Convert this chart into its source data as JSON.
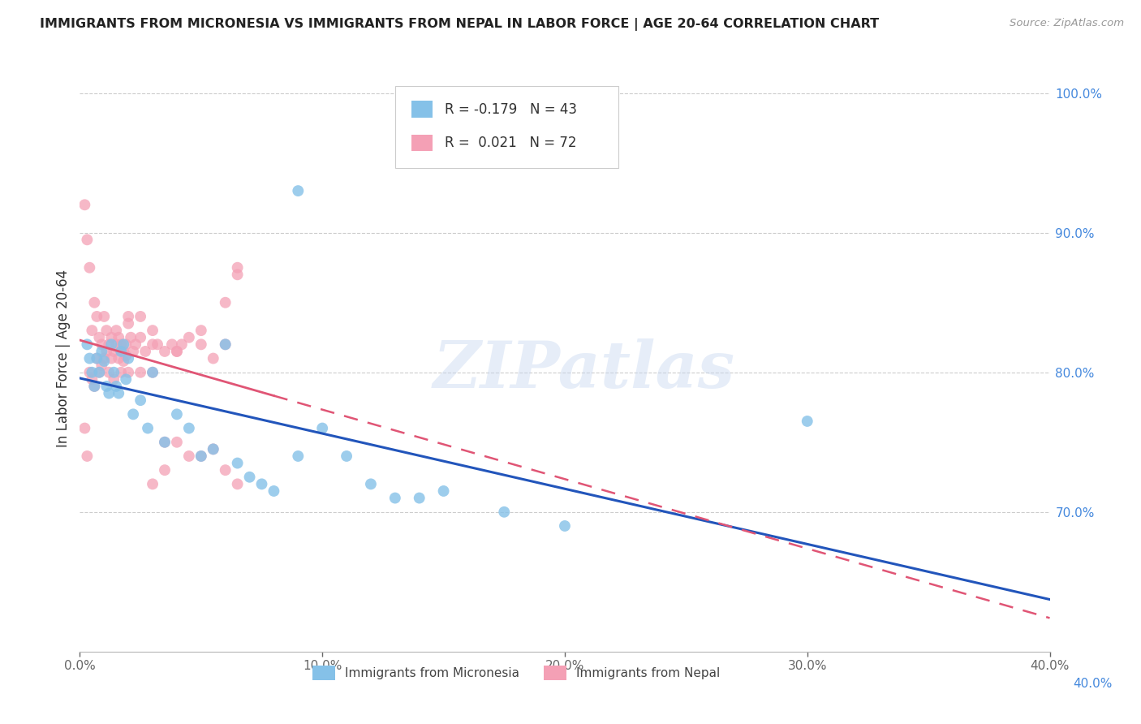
{
  "title": "IMMIGRANTS FROM MICRONESIA VS IMMIGRANTS FROM NEPAL IN LABOR FORCE | AGE 20-64 CORRELATION CHART",
  "source": "Source: ZipAtlas.com",
  "ylabel": "In Labor Force | Age 20-64",
  "xlim": [
    0.0,
    0.4
  ],
  "ylim": [
    0.6,
    1.02
  ],
  "right_yticks": [
    1.0,
    0.9,
    0.8,
    0.7
  ],
  "right_yticklabels": [
    "100.0%",
    "90.0%",
    "80.0%",
    "70.0%"
  ],
  "bottom_right_label": "40.0%",
  "xticks": [
    0.0,
    0.1,
    0.2,
    0.3,
    0.4
  ],
  "xticklabels": [
    "0.0%",
    "10.0%",
    "20.0%",
    "30.0%",
    "40.0%"
  ],
  "legend_blue_r": "-0.179",
  "legend_blue_n": "43",
  "legend_pink_r": "0.021",
  "legend_pink_n": "72",
  "blue_color": "#85C1E8",
  "pink_color": "#F4A0B5",
  "blue_line_color": "#2255BB",
  "pink_line_color": "#E05575",
  "watermark": "ZIPatlas",
  "watermark_color": "#C8D8F0",
  "blue_x": [
    0.003,
    0.004,
    0.005,
    0.006,
    0.007,
    0.008,
    0.009,
    0.01,
    0.011,
    0.012,
    0.013,
    0.014,
    0.015,
    0.016,
    0.017,
    0.018,
    0.019,
    0.02,
    0.022,
    0.025,
    0.028,
    0.03,
    0.035,
    0.04,
    0.045,
    0.05,
    0.055,
    0.065,
    0.07,
    0.075,
    0.08,
    0.09,
    0.1,
    0.11,
    0.12,
    0.13,
    0.14,
    0.15,
    0.175,
    0.2,
    0.09,
    0.3,
    0.06
  ],
  "blue_y": [
    0.82,
    0.81,
    0.8,
    0.79,
    0.81,
    0.8,
    0.815,
    0.808,
    0.79,
    0.785,
    0.82,
    0.8,
    0.79,
    0.785,
    0.815,
    0.82,
    0.795,
    0.81,
    0.77,
    0.78,
    0.76,
    0.8,
    0.75,
    0.77,
    0.76,
    0.74,
    0.745,
    0.735,
    0.725,
    0.72,
    0.715,
    0.74,
    0.76,
    0.74,
    0.72,
    0.71,
    0.71,
    0.715,
    0.7,
    0.69,
    0.93,
    0.765,
    0.82
  ],
  "pink_x": [
    0.002,
    0.003,
    0.004,
    0.005,
    0.006,
    0.007,
    0.008,
    0.009,
    0.01,
    0.011,
    0.012,
    0.013,
    0.014,
    0.015,
    0.016,
    0.017,
    0.018,
    0.019,
    0.02,
    0.021,
    0.022,
    0.023,
    0.025,
    0.027,
    0.03,
    0.032,
    0.035,
    0.038,
    0.04,
    0.042,
    0.045,
    0.05,
    0.055,
    0.06,
    0.065,
    0.03,
    0.04,
    0.05,
    0.06,
    0.065,
    0.004,
    0.005,
    0.006,
    0.007,
    0.008,
    0.009,
    0.01,
    0.011,
    0.012,
    0.013,
    0.014,
    0.015,
    0.016,
    0.017,
    0.018,
    0.019,
    0.02,
    0.025,
    0.03,
    0.035,
    0.002,
    0.003,
    0.035,
    0.04,
    0.045,
    0.05,
    0.055,
    0.06,
    0.065,
    0.02,
    0.025,
    0.03
  ],
  "pink_y": [
    0.92,
    0.895,
    0.875,
    0.83,
    0.85,
    0.84,
    0.825,
    0.82,
    0.84,
    0.83,
    0.82,
    0.825,
    0.815,
    0.83,
    0.825,
    0.82,
    0.815,
    0.82,
    0.835,
    0.825,
    0.815,
    0.82,
    0.825,
    0.815,
    0.83,
    0.82,
    0.815,
    0.82,
    0.815,
    0.82,
    0.825,
    0.83,
    0.81,
    0.82,
    0.87,
    0.8,
    0.815,
    0.82,
    0.85,
    0.875,
    0.8,
    0.795,
    0.79,
    0.81,
    0.8,
    0.805,
    0.81,
    0.815,
    0.8,
    0.81,
    0.795,
    0.82,
    0.81,
    0.8,
    0.808,
    0.812,
    0.8,
    0.8,
    0.82,
    0.75,
    0.76,
    0.74,
    0.73,
    0.75,
    0.74,
    0.74,
    0.745,
    0.73,
    0.72,
    0.84,
    0.84,
    0.72
  ]
}
